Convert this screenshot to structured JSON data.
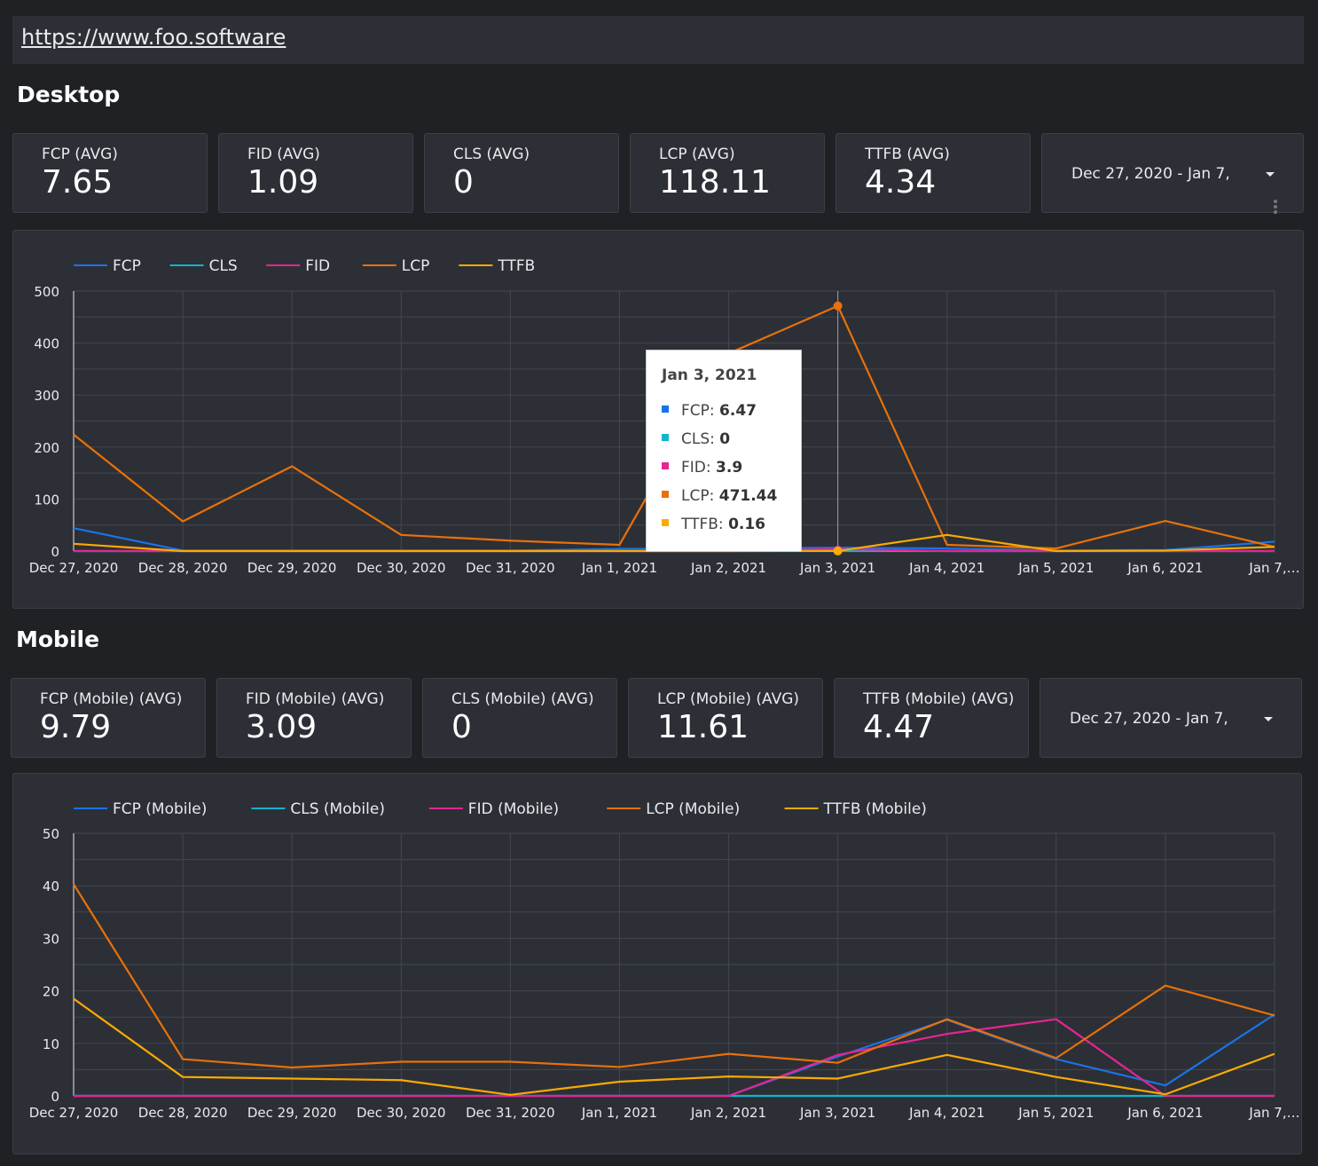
{
  "url": "https://www.foo.software",
  "colors": {
    "FCP": "#1a73e8",
    "CLS": "#12b5cb",
    "FID": "#e52592",
    "LCP": "#e8710a",
    "TTFB": "#f9ab00"
  },
  "desktop": {
    "title": "Desktop",
    "metrics": [
      {
        "label": "FCP (AVG)",
        "value": "7.65"
      },
      {
        "label": "FID (AVG)",
        "value": "1.09"
      },
      {
        "label": "CLS (AVG)",
        "value": "0"
      },
      {
        "label": "LCP (AVG)",
        "value": "118.11"
      },
      {
        "label": "TTFB (AVG)",
        "value": "4.34"
      }
    ],
    "date_range": "Dec 27, 2020 - Jan 7,",
    "tooltip": {
      "title": "Jan 3, 2021",
      "rows": [
        {
          "name": "FCP",
          "value": "6.47",
          "color": "#1a73e8"
        },
        {
          "name": "CLS",
          "value": "0",
          "color": "#12b5cb"
        },
        {
          "name": "FID",
          "value": "3.9",
          "color": "#e52592"
        },
        {
          "name": "LCP",
          "value": "471.44",
          "color": "#e8710a"
        },
        {
          "name": "TTFB",
          "value": "0.16",
          "color": "#f9ab00"
        }
      ]
    }
  },
  "mobile": {
    "title": "Mobile",
    "metrics": [
      {
        "label": "FCP (Mobile) (AVG)",
        "value": "9.79"
      },
      {
        "label": "FID (Mobile) (AVG)",
        "value": "3.09"
      },
      {
        "label": "CLS (Mobile) (AVG)",
        "value": "0"
      },
      {
        "label": "LCP (Mobile) (AVG)",
        "value": "11.61"
      },
      {
        "label": "TTFB (Mobile) (AVG)",
        "value": "4.47"
      }
    ],
    "date_range": "Dec 27, 2020 - Jan 7,"
  },
  "chart_data": [
    {
      "type": "line",
      "x": [
        "Dec 27, 2020",
        "Dec 28, 2020",
        "Dec 29, 2020",
        "Dec 30, 2020",
        "Dec 31, 2020",
        "Jan 1, 2021",
        "Jan 2, 2021",
        "Jan 3, 2021",
        "Jan 4, 2021",
        "Jan 5, 2021",
        "Jan 6, 2021",
        "Jan 7,…"
      ],
      "yticks": [
        0,
        100,
        200,
        300,
        400,
        500
      ],
      "ylim": [
        0,
        500
      ],
      "grid": true,
      "legend": "top-left",
      "series": [
        {
          "name": "FCP",
          "color": "#1a73e8",
          "values": [
            44,
            1,
            1,
            1,
            1,
            4,
            5,
            6.47,
            5,
            1,
            2,
            18
          ]
        },
        {
          "name": "CLS",
          "color": "#12b5cb",
          "values": [
            0,
            0,
            0,
            0,
            0,
            0,
            0,
            0,
            0,
            0,
            0,
            0
          ]
        },
        {
          "name": "FID",
          "color": "#e52592",
          "values": [
            0,
            0,
            0,
            0,
            0,
            0,
            0,
            3.9,
            0,
            0,
            0,
            0
          ]
        },
        {
          "name": "LCP",
          "color": "#e8710a",
          "values": [
            224,
            57,
            163,
            31,
            20,
            12,
            380,
            471.44,
            12,
            5,
            58,
            8
          ]
        },
        {
          "name": "TTFB",
          "color": "#f9ab00",
          "values": [
            14,
            0,
            0,
            0,
            0,
            0,
            0,
            0.16,
            31,
            0,
            1,
            8
          ]
        }
      ]
    },
    {
      "type": "line",
      "x": [
        "Dec 27, 2020",
        "Dec 28, 2020",
        "Dec 29, 2020",
        "Dec 30, 2020",
        "Dec 31, 2020",
        "Jan 1, 2021",
        "Jan 2, 2021",
        "Jan 3, 2021",
        "Jan 4, 2021",
        "Jan 5, 2021",
        "Jan 6, 2021",
        "Jan 7,…"
      ],
      "yticks": [
        0,
        10,
        20,
        30,
        40,
        50
      ],
      "ylim": [
        0,
        50
      ],
      "grid": true,
      "legend": "top-left",
      "series": [
        {
          "name": "FCP (Mobile)",
          "color": "#1a73e8",
          "values": [
            0,
            0,
            0,
            0,
            0,
            0,
            0,
            7.5,
            14.5,
            7,
            2,
            15.5
          ]
        },
        {
          "name": "CLS (Mobile)",
          "color": "#12b5cb",
          "values": [
            0,
            0,
            0,
            0,
            0,
            0,
            0,
            0,
            0,
            0,
            0,
            0
          ]
        },
        {
          "name": "FID (Mobile)",
          "color": "#e52592",
          "values": [
            0,
            0,
            0,
            0,
            0,
            0,
            0,
            7.8,
            11.8,
            14.6,
            0,
            0
          ]
        },
        {
          "name": "LCP (Mobile)",
          "color": "#e8710a",
          "values": [
            40.3,
            7,
            5.4,
            6.5,
            6.5,
            5.5,
            8,
            6.3,
            14.6,
            7.2,
            21,
            15.3
          ]
        },
        {
          "name": "TTFB (Mobile)",
          "color": "#f9ab00",
          "values": [
            18.5,
            3.6,
            3.3,
            3,
            0.2,
            2.7,
            3.7,
            3.3,
            7.8,
            3.6,
            0.3,
            8
          ]
        }
      ]
    }
  ]
}
